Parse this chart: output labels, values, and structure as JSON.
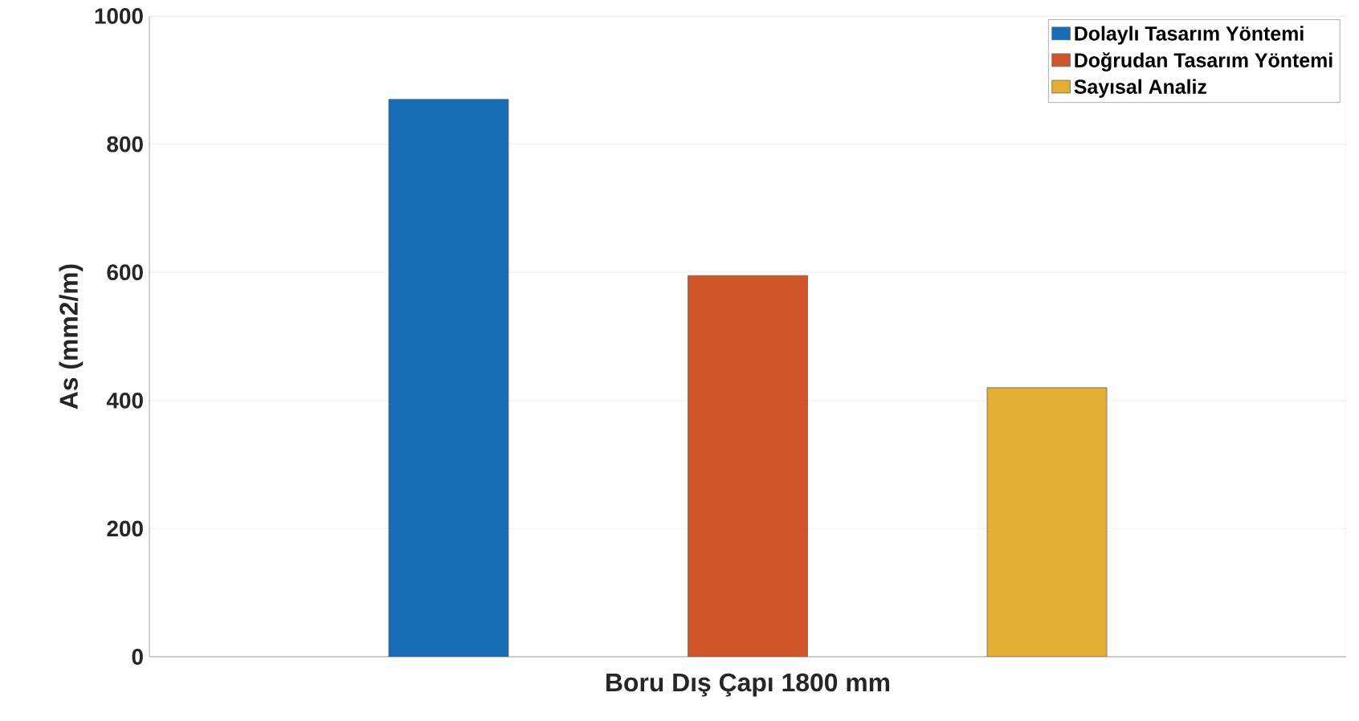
{
  "chart_data": {
    "type": "bar",
    "xlabel": "Boru Dış Çapı 1800 mm",
    "ylabel": "As (mm2/m)",
    "categories": [
      null
    ],
    "series": [
      {
        "name": "Dolaylı Tasarım Yöntemi",
        "color": "#176cb3",
        "values": [
          870
        ]
      },
      {
        "name": "Doğrudan Tasarım Yöntemi",
        "color": "#d0552a",
        "values": [
          595
        ]
      },
      {
        "name": "Sayısal Analiz",
        "color": "#e3ae33",
        "values": [
          420
        ]
      }
    ],
    "ylim": [
      0,
      1000
    ],
    "yticks": [
      0,
      200,
      400,
      600,
      800,
      1000
    ],
    "grid": "y",
    "legend": "top right"
  }
}
